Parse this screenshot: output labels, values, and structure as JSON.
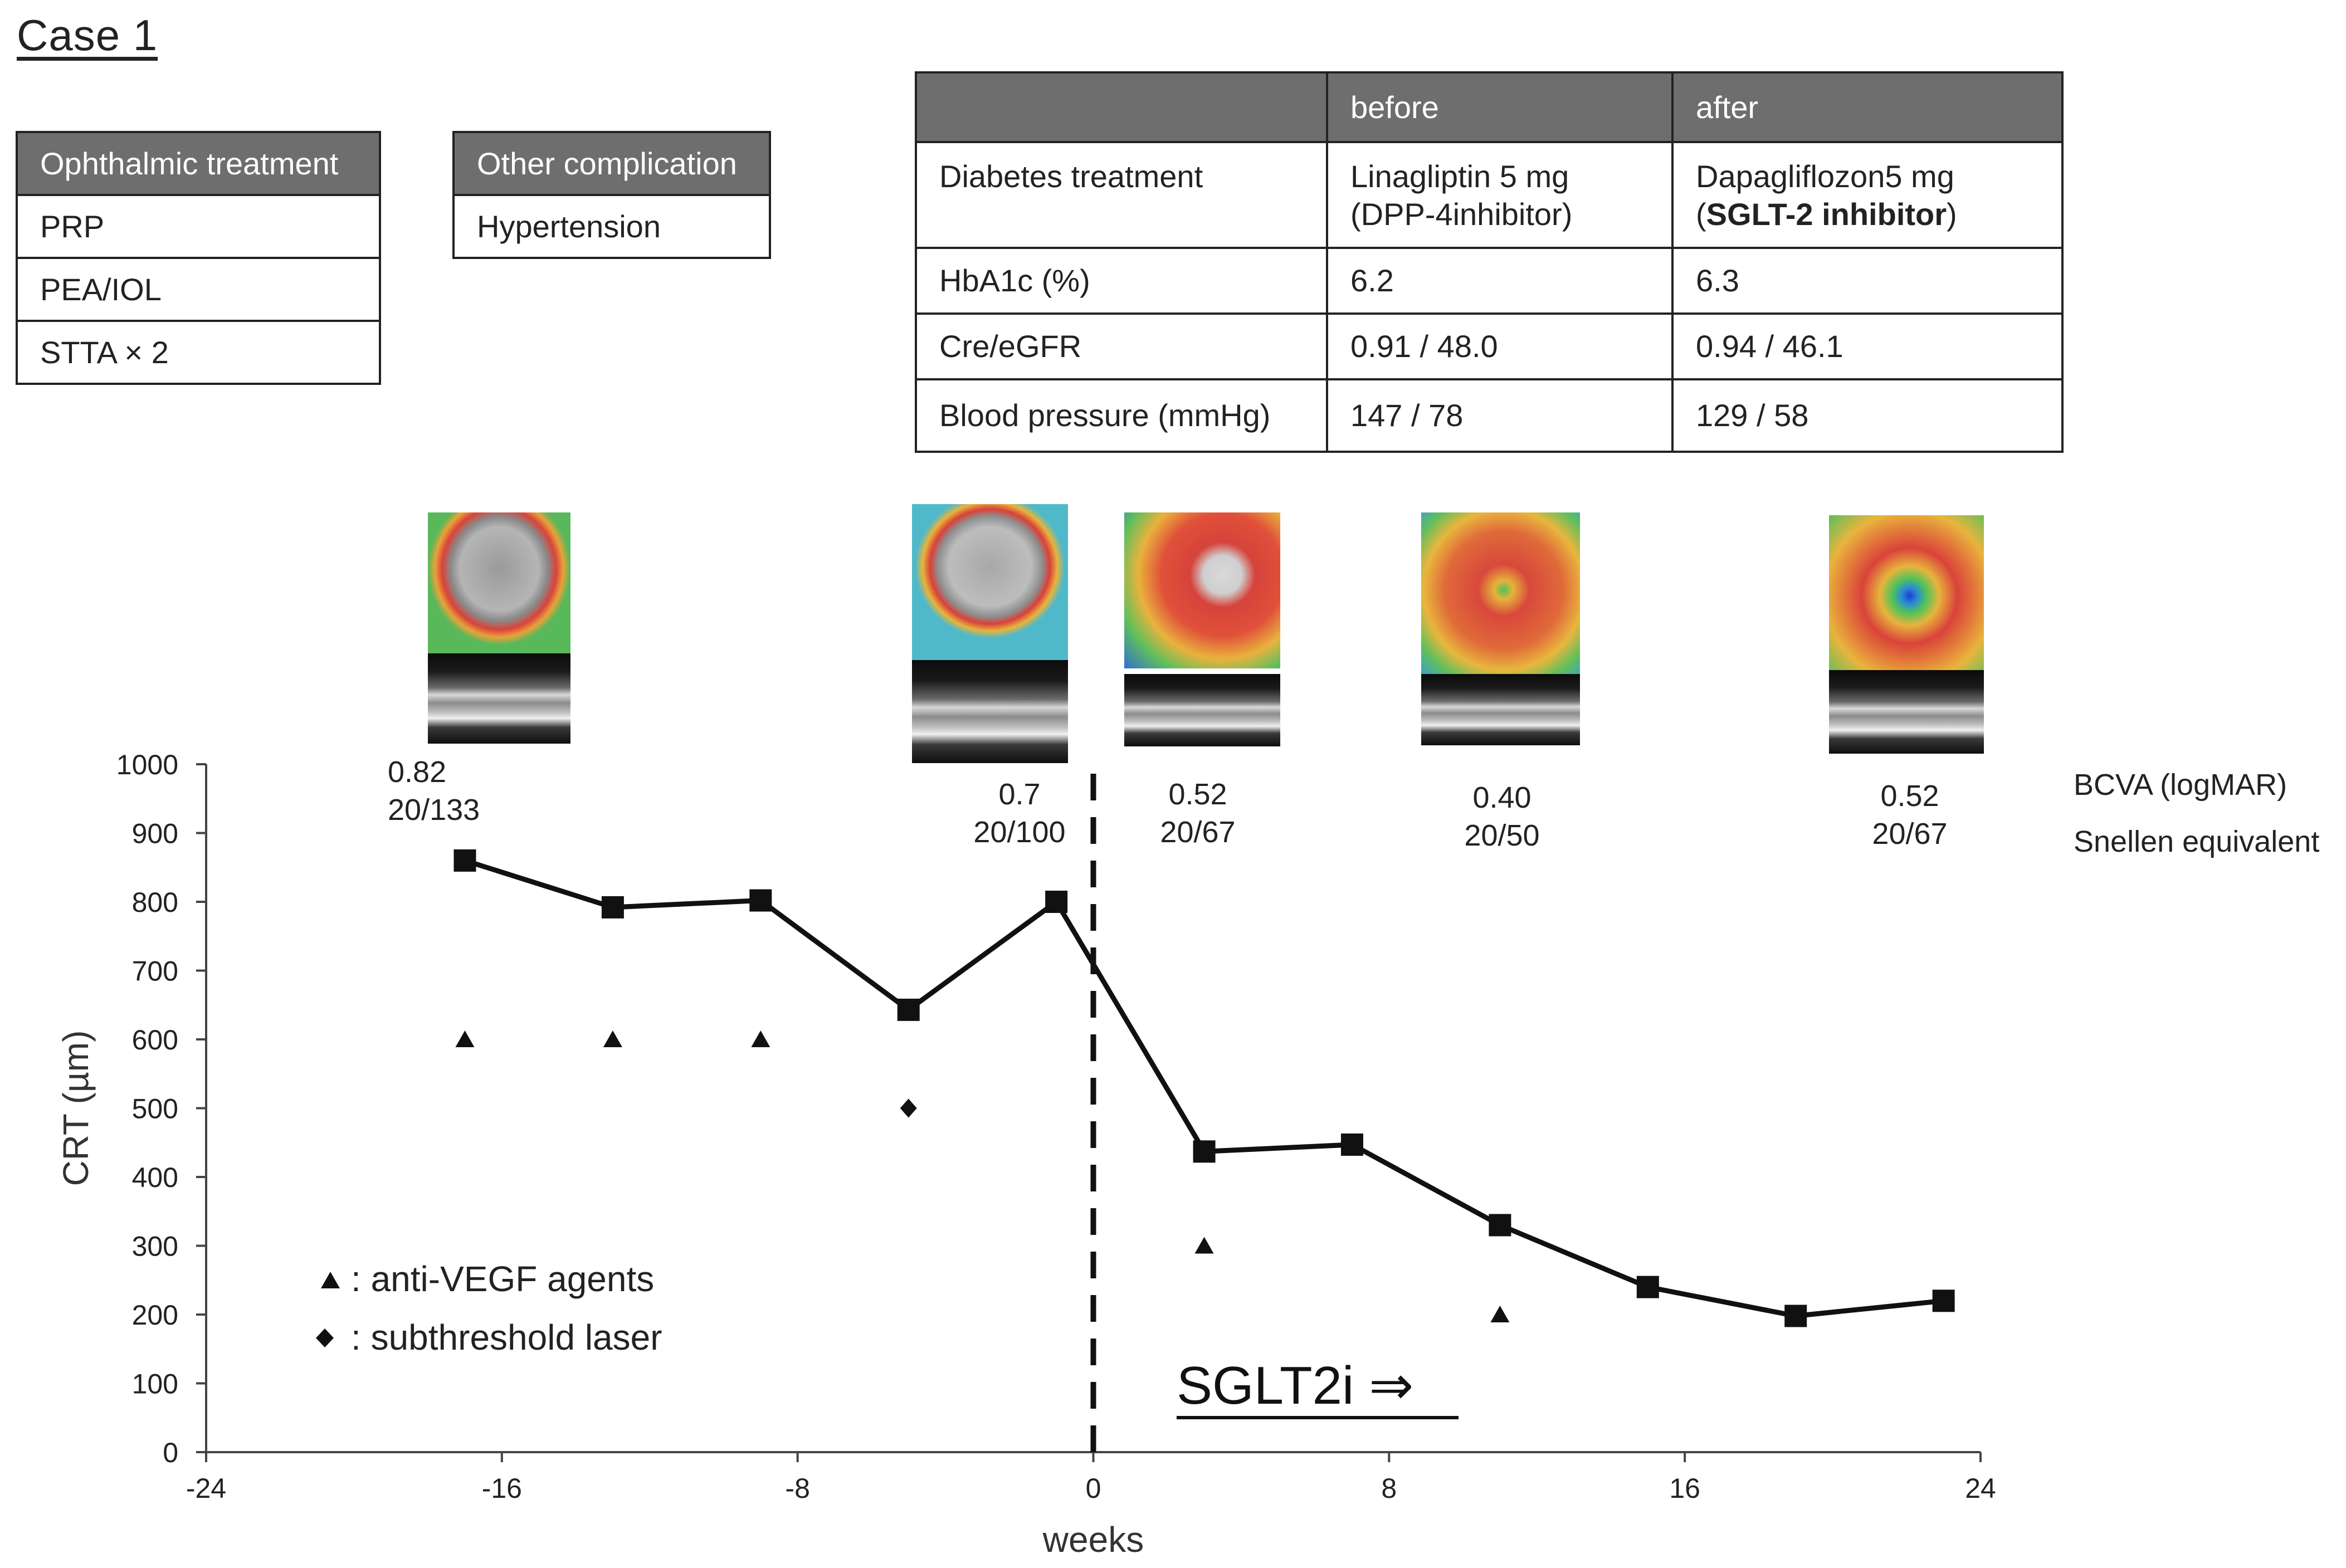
{
  "case_title": "Case 1",
  "ophthalmic": {
    "header": "Ophthalmic treatment",
    "items": [
      "PRP",
      "PEA/IOL",
      "STTA × 2"
    ]
  },
  "complication": {
    "header": "Other complication",
    "items": [
      "Hypertension"
    ]
  },
  "summary_table": {
    "headers": [
      "",
      "before",
      "after"
    ],
    "rows": [
      {
        "label": "Diabetes treatment",
        "before_line1": "Linagliptin 5 mg",
        "before_line2": "(DPP-4inhibitor)",
        "after_line1": "Dapagliflozon5 mg",
        "after_line2_open": "(",
        "after_line2_bold": "SGLT-2 inhibitor",
        "after_line2_close": ")"
      },
      {
        "label": "HbA1c (%)",
        "before": "6.2",
        "after": "6.3"
      },
      {
        "label": "Cre/eGFR",
        "before": "0.91 / 48.0",
        "after": "0.94 / 46.1"
      },
      {
        "label": "Blood pressure (mmHg)",
        "before": "147 / 78",
        "after": "129 / 58"
      }
    ]
  },
  "bcva": [
    {
      "logmar": "0.82",
      "snellen": "20/133"
    },
    {
      "logmar": "0.7",
      "snellen": "20/100"
    },
    {
      "logmar": "0.52",
      "snellen": "20/67"
    },
    {
      "logmar": "0.40",
      "snellen": "20/50"
    },
    {
      "logmar": "0.52",
      "snellen": "20/67"
    }
  ],
  "bcva_label": "BCVA (logMAR)",
  "snellen_label": "Snellen equivalent",
  "chart_data": {
    "type": "line",
    "title": "",
    "xlabel": "weeks",
    "ylabel": "CRT (µm)",
    "xlim": [
      -24,
      24
    ],
    "ylim": [
      0,
      1000
    ],
    "x_ticks": [
      -24,
      -16,
      -8,
      0,
      8,
      16,
      24
    ],
    "y_ticks": [
      0,
      100,
      200,
      300,
      400,
      500,
      600,
      700,
      800,
      900,
      1000
    ],
    "series": [
      {
        "name": "CRT",
        "x": [
          -17,
          -13,
          -9,
          -5,
          -1,
          3,
          7,
          11,
          15,
          19,
          23
        ],
        "y": [
          860,
          792,
          802,
          643,
          800,
          437,
          447,
          330,
          240,
          198,
          220
        ]
      }
    ],
    "anti_vegf": {
      "name": "anti-VEGF agents",
      "x": [
        -17,
        -13,
        -9,
        3,
        11
      ],
      "y": [
        600,
        600,
        600,
        300,
        200
      ]
    },
    "subthreshold_laser": {
      "name": "subthreshold laser",
      "x": [
        -5
      ],
      "y": [
        500
      ]
    },
    "sglt2i_start_week": 0,
    "legend": [
      {
        "symbol": "▲",
        "label": " : anti-VEGF agents"
      },
      {
        "symbol": "◆",
        "label": " : subthreshold laser"
      }
    ],
    "annotation": "SGLT2i ⇒"
  },
  "colors": {
    "header_fill": "#6e6e6e",
    "line": "#111111"
  }
}
